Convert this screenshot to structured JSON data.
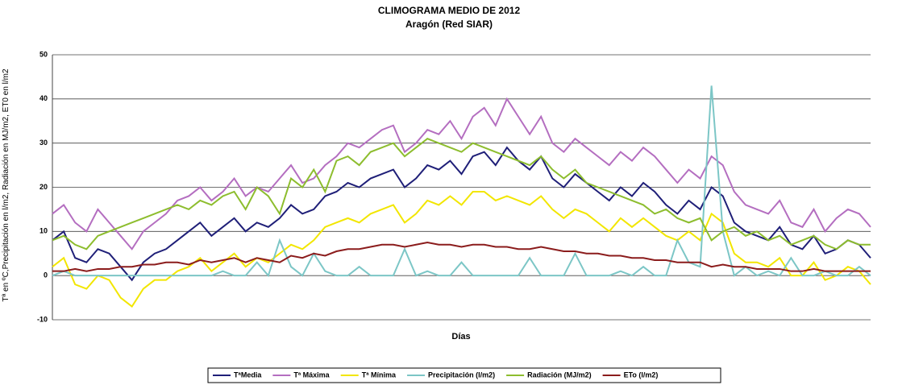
{
  "chart_data": {
    "type": "line",
    "title": "CLIMOGRAMA MEDIO DE 2012",
    "subtitle": "Aragón  (Red SIAR)",
    "x_label": "Días",
    "y_label": "Tª en ºC,Precipitación en l/m2, Radiación en MJ/m2, ET0 en l/m2",
    "categories": [
      null,
      null,
      null,
      null,
      null,
      null,
      null,
      null,
      null,
      null,
      null,
      null,
      null,
      null,
      null,
      null,
      null,
      null,
      null,
      null,
      null,
      null,
      null,
      null,
      null,
      null,
      null,
      null,
      null,
      null,
      null,
      null,
      null,
      null,
      null,
      null,
      null,
      null,
      null,
      null,
      null,
      null,
      null,
      null,
      null,
      null,
      null,
      null,
      null,
      null,
      null,
      null,
      null,
      null,
      null,
      null,
      null,
      null,
      null,
      null,
      null,
      null,
      null,
      null,
      null,
      null,
      null,
      null,
      null,
      null,
      null,
      null,
      null
    ],
    "ylim": [
      -10,
      50
    ],
    "yticks": [
      -10,
      0,
      10,
      20,
      30,
      40,
      50
    ],
    "grid": true,
    "legend": "bottom",
    "series": [
      {
        "name": "TªMedia",
        "color": "#1f1f78",
        "values": [
          8,
          10,
          4,
          3,
          6,
          5,
          2,
          -1,
          3,
          5,
          6,
          8,
          10,
          12,
          9,
          11,
          13,
          10,
          12,
          11,
          13,
          16,
          14,
          15,
          18,
          19,
          21,
          20,
          22,
          23,
          24,
          20,
          22,
          25,
          24,
          26,
          23,
          27,
          28,
          25,
          29,
          26,
          24,
          27,
          22,
          20,
          23,
          21,
          19,
          17,
          20,
          18,
          21,
          19,
          16,
          14,
          17,
          15,
          20,
          18,
          12,
          10,
          9,
          8,
          11,
          7,
          6,
          9,
          5,
          6,
          8,
          7,
          4
        ]
      },
      {
        "name": "Tª Máxima",
        "color": "#b46ec0",
        "values": [
          14,
          16,
          12,
          10,
          15,
          12,
          9,
          6,
          10,
          12,
          14,
          17,
          18,
          20,
          17,
          19,
          22,
          18,
          20,
          19,
          22,
          25,
          21,
          22,
          25,
          27,
          30,
          29,
          31,
          33,
          34,
          28,
          30,
          33,
          32,
          35,
          31,
          36,
          38,
          34,
          40,
          36,
          32,
          36,
          30,
          28,
          31,
          29,
          27,
          25,
          28,
          26,
          29,
          27,
          24,
          21,
          24,
          22,
          27,
          25,
          19,
          16,
          15,
          14,
          17,
          12,
          11,
          15,
          10,
          13,
          15,
          14,
          11
        ]
      },
      {
        "name": "Tª Mínima",
        "color": "#f2e600",
        "values": [
          2,
          4,
          -2,
          -3,
          0,
          -1,
          -5,
          -7,
          -3,
          -1,
          -1,
          1,
          2,
          4,
          1,
          3,
          5,
          2,
          4,
          3,
          5,
          7,
          6,
          8,
          11,
          12,
          13,
          12,
          14,
          15,
          16,
          12,
          14,
          17,
          16,
          18,
          16,
          19,
          19,
          17,
          18,
          17,
          16,
          18,
          15,
          13,
          15,
          14,
          12,
          10,
          13,
          11,
          13,
          11,
          9,
          8,
          10,
          8,
          14,
          12,
          5,
          3,
          3,
          2,
          4,
          0,
          0,
          3,
          -1,
          0,
          2,
          1,
          -2
        ]
      },
      {
        "name": "Precipitación (l/m2)",
        "color": "#7cc6c6",
        "values": [
          0,
          1,
          0,
          0,
          0,
          0,
          0,
          0,
          0,
          0,
          0,
          0,
          0,
          0,
          0,
          1,
          0,
          0,
          3,
          0,
          8,
          2,
          0,
          5,
          1,
          0,
          0,
          2,
          0,
          0,
          0,
          6,
          0,
          1,
          0,
          0,
          3,
          0,
          0,
          0,
          0,
          0,
          4,
          0,
          0,
          0,
          5,
          0,
          0,
          0,
          1,
          0,
          2,
          0,
          0,
          8,
          3,
          2,
          43,
          10,
          0,
          2,
          0,
          1,
          0,
          4,
          0,
          0,
          1,
          0,
          0,
          2,
          0
        ]
      },
      {
        "name": "Radiación (MJ/m2)",
        "color": "#8dbd2e",
        "values": [
          8,
          9,
          7,
          6,
          9,
          10,
          11,
          12,
          13,
          14,
          15,
          16,
          15,
          17,
          16,
          18,
          19,
          15,
          20,
          18,
          14,
          22,
          20,
          24,
          19,
          26,
          27,
          25,
          28,
          29,
          30,
          27,
          29,
          31,
          30,
          29,
          28,
          30,
          29,
          28,
          27,
          26,
          25,
          27,
          24,
          22,
          24,
          21,
          20,
          19,
          18,
          17,
          16,
          14,
          15,
          13,
          12,
          13,
          8,
          10,
          11,
          9,
          10,
          8,
          9,
          7,
          8,
          9,
          7,
          6,
          8,
          7,
          7
        ]
      },
      {
        "name": "ETo (l/m2)",
        "color": "#8b1c1c",
        "values": [
          1,
          1,
          1.5,
          1,
          1.5,
          1.5,
          2,
          2,
          2.5,
          2.5,
          3,
          3,
          2.5,
          3.5,
          3,
          3.5,
          4,
          3,
          4,
          3.5,
          3,
          4.5,
          4,
          5,
          4.5,
          5.5,
          6,
          6,
          6.5,
          7,
          7,
          6.5,
          7,
          7.5,
          7,
          7,
          6.5,
          7,
          7,
          6.5,
          6.5,
          6,
          6,
          6.5,
          6,
          5.5,
          5.5,
          5,
          5,
          4.5,
          4.5,
          4,
          4,
          3.5,
          3.5,
          3,
          3,
          3,
          2,
          2.5,
          2,
          2,
          1.5,
          1.5,
          1.5,
          1,
          1,
          1.5,
          1,
          1,
          1,
          1,
          1
        ]
      }
    ]
  }
}
